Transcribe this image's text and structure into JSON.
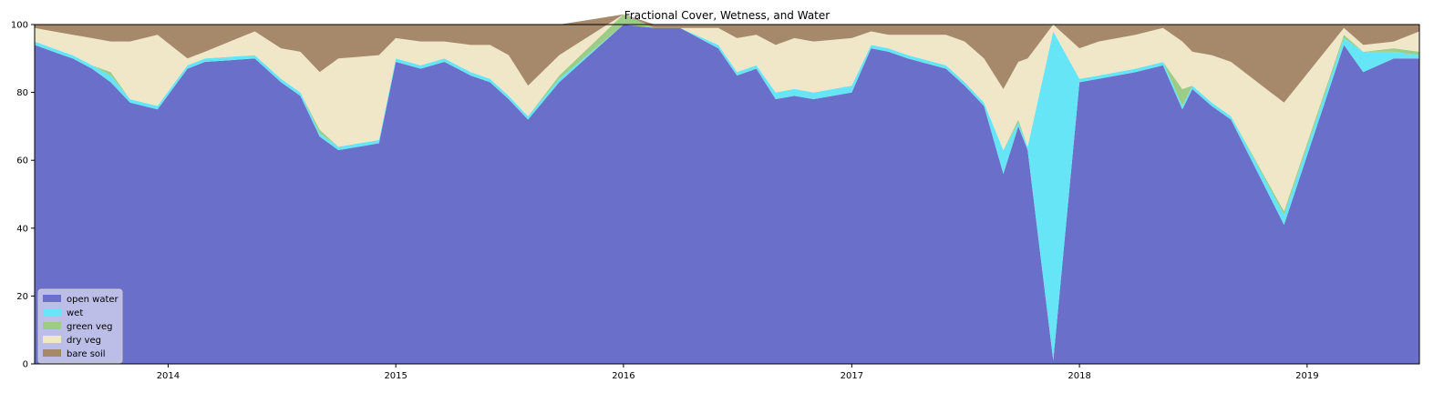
{
  "chart_data": {
    "type": "area",
    "title": "Fractional Cover, Wetness, and Water",
    "xlabel": "",
    "ylabel": "",
    "ylim": [
      0,
      100
    ],
    "xlim": [
      "2013-06-01",
      "2019-06-30"
    ],
    "stacked": true,
    "grid": false,
    "legend_position": "lower-left",
    "y_ticks": [
      0,
      20,
      40,
      60,
      80,
      100
    ],
    "x_ticks": [
      {
        "date": "2014-01-01",
        "label": "2014"
      },
      {
        "date": "2015-01-01",
        "label": "2015"
      },
      {
        "date": "2016-01-01",
        "label": "2016"
      },
      {
        "date": "2017-01-01",
        "label": "2017"
      },
      {
        "date": "2018-01-01",
        "label": "2018"
      },
      {
        "date": "2019-01-01",
        "label": "2019"
      }
    ],
    "dates": [
      "2013-06-01",
      "2013-07-01",
      "2013-08-01",
      "2013-09-01",
      "2013-10-01",
      "2013-11-01",
      "2013-12-15",
      "2014-02-01",
      "2014-03-01",
      "2014-05-20",
      "2014-07-01",
      "2014-08-01",
      "2014-09-01",
      "2014-10-01",
      "2014-12-05",
      "2015-01-01",
      "2015-02-10",
      "2015-03-20",
      "2015-05-01",
      "2015-06-01",
      "2015-07-01",
      "2015-08-01",
      "2015-09-20",
      "2016-01-01",
      "2016-02-20",
      "2016-04-01",
      "2016-06-01",
      "2016-07-01",
      "2016-08-01",
      "2016-09-01",
      "2016-10-01",
      "2016-11-01",
      "2017-01-01",
      "2017-02-01",
      "2017-03-01",
      "2017-04-01",
      "2017-06-01",
      "2017-07-01",
      "2017-08-01",
      "2017-09-01",
      "2017-09-25",
      "2017-10-10",
      "2017-11-20",
      "2018-01-01",
      "2018-02-01",
      "2018-04-01",
      "2018-05-15",
      "2018-06-15",
      "2018-07-01",
      "2018-08-01",
      "2018-09-01",
      "2018-11-25",
      "2019-03-01",
      "2019-04-01",
      "2019-05-20",
      "2019-06-30"
    ],
    "series": [
      {
        "name": "open water",
        "color": "#6a70c9",
        "values": [
          94,
          92,
          90,
          87,
          83,
          77,
          75,
          87,
          89,
          90,
          83,
          79,
          67,
          63,
          65,
          89,
          87,
          89,
          85,
          83,
          78,
          72,
          83,
          100,
          99,
          99,
          93,
          85,
          87,
          78,
          79,
          78,
          80,
          93,
          92,
          90,
          87,
          82,
          76,
          56,
          70,
          63,
          1,
          83,
          84,
          86,
          88,
          75,
          81,
          76,
          72,
          41,
          94,
          86,
          90,
          90
        ]
      },
      {
        "name": "wet",
        "color": "#66e5f6",
        "values": [
          1,
          1,
          1,
          1,
          2,
          1,
          1,
          1,
          1,
          1,
          1,
          1,
          1,
          1,
          1,
          1,
          1,
          1,
          1,
          1,
          1,
          1,
          1,
          0,
          0,
          0,
          1,
          1,
          1,
          2,
          2,
          2,
          2,
          1,
          1,
          1,
          1,
          1,
          1,
          7,
          1,
          1,
          97,
          1,
          1,
          1,
          1,
          1,
          1,
          1,
          1,
          3,
          2,
          6,
          2,
          1
        ]
      },
      {
        "name": "green veg",
        "color": "#9ccc86",
        "values": [
          0,
          0,
          0,
          0,
          1,
          0,
          0,
          0,
          0,
          0,
          0,
          0,
          1,
          0,
          0,
          0,
          0,
          0,
          0,
          0,
          0,
          0,
          1,
          3,
          0,
          0,
          0,
          0,
          0,
          0,
          0,
          0,
          0,
          0,
          0,
          0,
          0,
          0,
          0,
          0,
          1,
          0,
          0,
          0,
          0,
          0,
          0,
          5,
          0,
          0,
          0,
          1,
          1,
          0,
          1,
          1
        ]
      },
      {
        "name": "dry veg",
        "color": "#f0e7c9",
        "values": [
          4,
          5,
          6,
          8,
          9,
          17,
          21,
          2,
          2,
          7,
          9,
          12,
          17,
          26,
          25,
          6,
          7,
          5,
          8,
          10,
          12,
          9,
          6,
          0,
          0,
          0,
          5,
          10,
          9,
          14,
          15,
          15,
          14,
          4,
          4,
          6,
          9,
          12,
          13,
          18,
          17,
          26,
          2,
          9,
          10,
          10,
          10,
          14,
          10,
          14,
          16,
          32,
          2,
          2,
          2,
          6
        ]
      },
      {
        "name": "bare soil",
        "color": "#a5896a",
        "values": [
          1,
          2,
          3,
          4,
          5,
          5,
          3,
          10,
          8,
          2,
          7,
          8,
          14,
          10,
          9,
          4,
          5,
          5,
          6,
          6,
          9,
          18,
          9,
          0,
          1,
          1,
          1,
          4,
          3,
          6,
          4,
          5,
          4,
          2,
          3,
          3,
          3,
          5,
          10,
          19,
          11,
          10,
          0,
          7,
          5,
          3,
          1,
          5,
          8,
          9,
          11,
          23,
          1,
          6,
          5,
          2
        ]
      }
    ]
  }
}
